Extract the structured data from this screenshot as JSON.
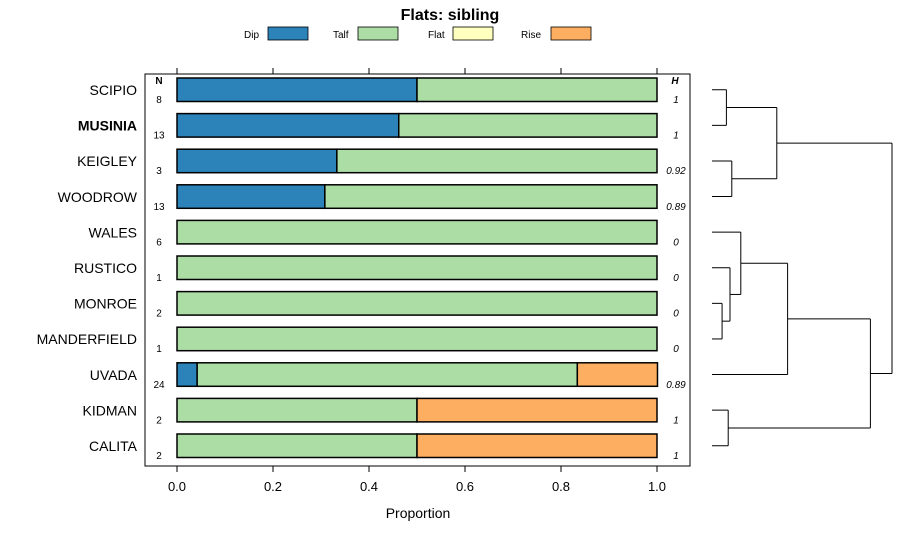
{
  "chart_data": {
    "type": "bar",
    "orientation": "horizontal",
    "stacked": true,
    "title": "Flats: sibling",
    "xlabel": "Proportion",
    "ylabel": "",
    "xlim": [
      -0.05,
      1.07
    ],
    "xticks": [
      "0.0",
      "0.2",
      "0.4",
      "0.6",
      "0.8",
      "1.0"
    ],
    "n_header": "N",
    "h_header": "H",
    "legend": [
      {
        "name": "Dip",
        "color": "#2B83BA"
      },
      {
        "name": "Talf",
        "color": "#ABDDA4"
      },
      {
        "name": "Flat",
        "color": "#FFFFBF"
      },
      {
        "name": "Rise",
        "color": "#FDAE61"
      }
    ],
    "categories": [
      "SCIPIO",
      "MUSINIA",
      "KEIGLEY",
      "WOODROW",
      "WALES",
      "RUSTICO",
      "MONROE",
      "MANDERFIELD",
      "UVADA",
      "KIDMAN",
      "CALITA"
    ],
    "highlight": "MUSINIA",
    "n": [
      "8",
      "13",
      "3",
      "13",
      "6",
      "1",
      "2",
      "1",
      "24",
      "2",
      "2"
    ],
    "h": [
      "1",
      "1",
      "0.92",
      "0.89",
      "0",
      "0",
      "0",
      "0",
      "0.89",
      "1",
      "1"
    ],
    "series": [
      {
        "name": "Dip",
        "values": [
          0.5,
          0.462,
          0.333,
          0.308,
          0,
          0,
          0,
          0,
          0.042,
          0,
          0
        ]
      },
      {
        "name": "Talf",
        "values": [
          0.5,
          0.538,
          0.667,
          0.692,
          1,
          1,
          1,
          1,
          0.792,
          0.5,
          0.5
        ]
      },
      {
        "name": "Flat",
        "values": [
          0,
          0,
          0,
          0,
          0,
          0,
          0,
          0,
          0,
          0,
          0
        ]
      },
      {
        "name": "Rise",
        "values": [
          0,
          0,
          0,
          0,
          0,
          0,
          0,
          0,
          0.167,
          0.5,
          0.5
        ]
      }
    ],
    "dendrogram": {
      "order": [
        "SCIPIO",
        "MUSINIA",
        "KEIGLEY",
        "WOODROW",
        "WALES",
        "RUSTICO",
        "MONROE",
        "MANDERFIELD",
        "UVADA",
        "KIDMAN",
        "CALITA"
      ],
      "merges": [
        {
          "a": "SCIPIO",
          "b": "MUSINIA",
          "h": 0.04
        },
        {
          "a": "KEIGLEY",
          "b": "WOODROW",
          "h": 0.055
        },
        {
          "a": "MONROE",
          "b": "MANDERFIELD",
          "h": 0.028
        },
        {
          "a": "RUSTICO",
          "b": "MONROE+MANDERFIELD",
          "h": 0.05
        },
        {
          "a": "WALES",
          "b": "RUSTICO+MONROE+MANDERFIELD",
          "h": 0.08
        },
        {
          "a": "KIDMAN",
          "b": "CALITA",
          "h": 0.045
        },
        {
          "a": "SCIPIO+MUSINIA",
          "b": "KEIGLEY+WOODROW",
          "h": 0.18
        },
        {
          "a": "WALES+RUSTICO+MONROE+MANDERFIELD",
          "b": "UVADA",
          "h": 0.21
        },
        {
          "a": "WALES+RUSTICO+MONROE+MANDERFIELD+UVADA",
          "b": "KIDMAN+CALITA",
          "h": 0.44
        },
        {
          "a": "SCIPIO+MUSINIA+KEIGLEY+WOODROW",
          "b": "WALES+RUSTICO+MONROE+MANDERFIELD+UVADA+KIDMAN+CALITA",
          "h": 0.5
        }
      ]
    }
  }
}
